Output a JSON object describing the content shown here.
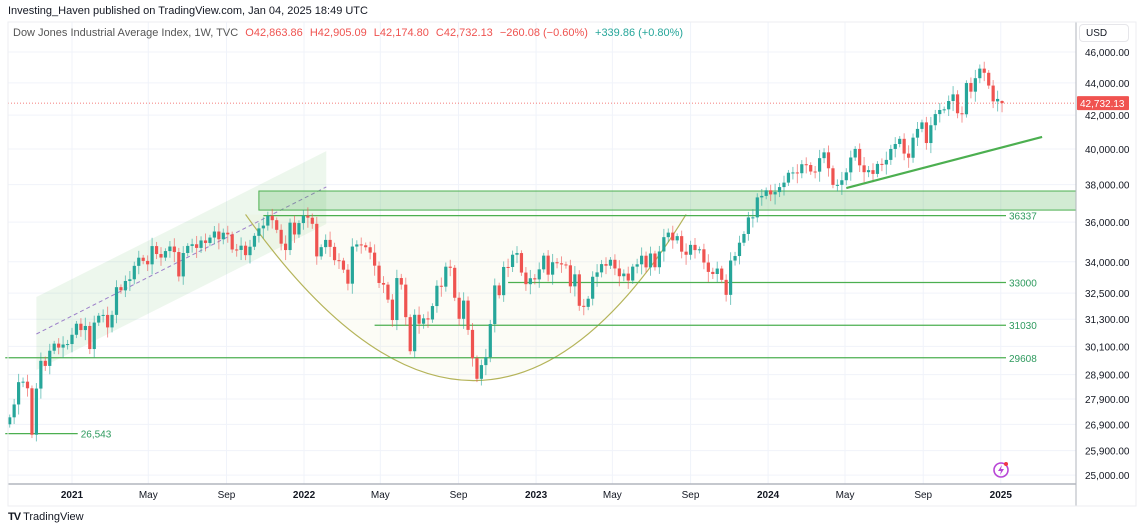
{
  "header": {
    "published": "Investing_Haven published on TradingView.com, Jan 04, 2025 18:49 UTC",
    "symbol": "Dow Jones Industrial Average Index, 1W, TVC",
    "open": "O42,863.86",
    "high": "H42,905.09",
    "low": "L42,174.80",
    "close": "C42,732.13",
    "change": "−260.08 (−0.60%)",
    "extra_change": "+339.86 (+0.80%)"
  },
  "footer": {
    "brand": "TradingView",
    "logo_icon": "tradingview-logo-icon"
  },
  "colors": {
    "up": "#26a69a",
    "down": "#ef5350",
    "drawing": "#4caf50",
    "cup": "#b5b45a",
    "channel_mid": "#9c7fc9",
    "price_label": "#f05350"
  },
  "chart_data": {
    "type": "candlestick",
    "title": "Dow Jones Industrial Average Index, 1W, TVC",
    "currency": "USD",
    "y_scale": "log",
    "ylim": [
      24700,
      47000
    ],
    "grid": true,
    "y_ticks": [
      "46,000.00",
      "44,000.00",
      "42,000.00",
      "40,000.00",
      "38,000.00",
      "36,000.00",
      "34,000.00",
      "32,500.00",
      "31,300.00",
      "30,100.00",
      "28,900.00",
      "27,900.00",
      "26,900.00",
      "25,900.00",
      "25,000.00"
    ],
    "y_tick_values": [
      46000,
      44000,
      42000,
      40000,
      38000,
      36000,
      34000,
      32500,
      31300,
      30100,
      28900,
      27900,
      26900,
      25900,
      25000
    ],
    "x_ticks": [
      {
        "label": "2021",
        "date": "2021-01-01",
        "bold": true
      },
      {
        "label": "May",
        "date": "2021-05-01"
      },
      {
        "label": "Sep",
        "date": "2021-09-01"
      },
      {
        "label": "2022",
        "date": "2022-01-01",
        "bold": true
      },
      {
        "label": "May",
        "date": "2022-05-01"
      },
      {
        "label": "Sep",
        "date": "2022-09-01"
      },
      {
        "label": "2023",
        "date": "2023-01-01",
        "bold": true
      },
      {
        "label": "May",
        "date": "2023-05-01"
      },
      {
        "label": "Sep",
        "date": "2023-09-01"
      },
      {
        "label": "2024",
        "date": "2024-01-01",
        "bold": true
      },
      {
        "label": "May",
        "date": "2024-05-01"
      },
      {
        "label": "Sep",
        "date": "2024-09-01"
      },
      {
        "label": "2025",
        "date": "2025-01-01",
        "bold": true
      }
    ],
    "first_week": "2020-09-25",
    "interval": "1W",
    "closes": [
      27174,
      27682,
      28586,
      28606,
      28335,
      26501,
      28323,
      29479,
      29263,
      29910,
      30218,
      30046,
      30179,
      30199,
      30606,
      31097,
      30814,
      30997,
      29983,
      31148,
      31458,
      31494,
      30932,
      31496,
      32779,
      32628,
      33072,
      33153,
      33801,
      34200,
      34043,
      33875,
      34778,
      34382,
      34208,
      34529,
      34756,
      34480,
      33290,
      34433,
      34786,
      34870,
      34687,
      35061,
      34935,
      35208,
      35515,
      35120,
      35455,
      35369,
      34608,
      34584,
      34798,
      34326,
      34746,
      35295,
      35677,
      35820,
      36328,
      36100,
      35602,
      34899,
      34580,
      35971,
      35365,
      35951,
      36338,
      36231,
      35912,
      34265,
      34725,
      35089,
      34738,
      34079,
      34059,
      33615,
      32944,
      34754,
      34861,
      34818,
      34721,
      34451,
      33811,
      32977,
      32899,
      32196,
      31262,
      33213,
      32900,
      31393,
      29888,
      31500,
      31097,
      31338,
      31288,
      31899,
      32845,
      32803,
      33761,
      33706,
      32283,
      31318,
      32151,
      30822,
      29590,
      28725,
      29297,
      29634,
      31082,
      32861,
      32403,
      33747,
      33746,
      34347,
      34430,
      33476,
      32920,
      33203,
      33147,
      33631,
      34303,
      33375,
      33978,
      33926,
      33869,
      33827,
      32817,
      33391,
      31910,
      31862,
      32238,
      33274,
      33485,
      33886,
      33809,
      34098,
      33675,
      33300,
      33427,
      33093,
      33763,
      33877,
      34299,
      33727,
      34408,
      33734,
      34509,
      35228,
      35459,
      35066,
      35281,
      34500,
      34346,
      34838,
      34577,
      34618,
      33964,
      33508,
      33407,
      33670,
      33127,
      32418,
      34061,
      34283,
      34947,
      35390,
      36245,
      36247,
      37305,
      37385,
      37690,
      37466,
      37593,
      37864,
      38109,
      38654,
      38671,
      38628,
      39131,
      39087,
      38723,
      38715,
      39476,
      39807,
      38904,
      37983,
      37986,
      38240,
      38676,
      39513,
      40004,
      39070,
      38686,
      38799,
      38589,
      39150,
      39119,
      39376,
      40001,
      40288,
      40590,
      39737,
      39498,
      40660,
      41175,
      41563,
      40345,
      41394,
      42063,
      42313,
      42353,
      42864,
      43276,
      42114,
      42052,
      43989,
      43445,
      44297,
      44911,
      44643,
      43828,
      42840,
      42992,
      42732.13
    ],
    "last_candle": {
      "open": 42863.86,
      "high": 42905.09,
      "low": 42174.8,
      "close": 42732.13
    },
    "current_price": 42732.13,
    "current_price_label": "42,732.13",
    "drawings": {
      "channel": {
        "start": "2020-11-06",
        "end": "2022-02-05",
        "upper": [
          32320,
          39880
        ],
        "lower": [
          29090,
          35900
        ],
        "mid": [
          30640,
          37870
        ]
      },
      "resistance_zone": {
        "start": "2021-10-22",
        "low": 36630,
        "high": 37650
      },
      "cup": {
        "start": "2021-10-01",
        "bottom": "2022-10-07",
        "end": "2023-08-25",
        "rim": 36400,
        "low": 28650
      },
      "uptrend": {
        "start": "2024-05-03",
        "end": "2025-03-07",
        "from": 37810,
        "to": 40700
      },
      "levels": [
        {
          "label": "36337",
          "value": 36337,
          "start": "2021-10-29"
        },
        {
          "label": "33000",
          "value": 33000,
          "start": "2022-11-18"
        },
        {
          "label": "31030",
          "value": 31030,
          "start": "2022-04-22"
        },
        {
          "label": "29608",
          "value": 29608,
          "start": "2020-09-18"
        },
        {
          "label": "26,543",
          "value": 26543,
          "start": "2020-09-18",
          "end": "2021-01-10"
        }
      ]
    }
  },
  "icons": {
    "alert": "lightning-alert-icon"
  }
}
